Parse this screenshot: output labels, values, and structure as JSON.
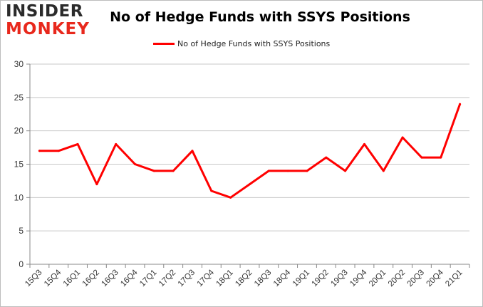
{
  "brand": {
    "line1": "INSIDER",
    "line2": "MONKEY",
    "colors": {
      "dark": "#2b2b2b",
      "red": "#e8281c"
    }
  },
  "chart_data": {
    "type": "line",
    "title": "No of Hedge Funds with SSYS Positions",
    "categories": [
      "15Q3",
      "15Q4",
      "16Q1",
      "16Q2",
      "16Q3",
      "16Q4",
      "17Q1",
      "17Q2",
      "17Q3",
      "17Q4",
      "18Q1",
      "18Q2",
      "18Q3",
      "18Q4",
      "19Q1",
      "19Q2",
      "19Q3",
      "19Q4",
      "20Q1",
      "20Q2",
      "20Q3",
      "20Q4",
      "21Q1"
    ],
    "series": [
      {
        "name": "No of Hedge Funds with SSYS Positions",
        "color": "#ff0000",
        "values": [
          17,
          17,
          18,
          12,
          18,
          15,
          14,
          14,
          17,
          11,
          10,
          12,
          14,
          14,
          14,
          16,
          14,
          18,
          14,
          19,
          16,
          16,
          24
        ]
      }
    ],
    "ylim": [
      0,
      30
    ],
    "yticks": [
      0,
      5,
      10,
      15,
      20,
      25,
      30
    ],
    "grid": true,
    "legend_position": "top-center",
    "xlabel": "",
    "ylabel": ""
  }
}
